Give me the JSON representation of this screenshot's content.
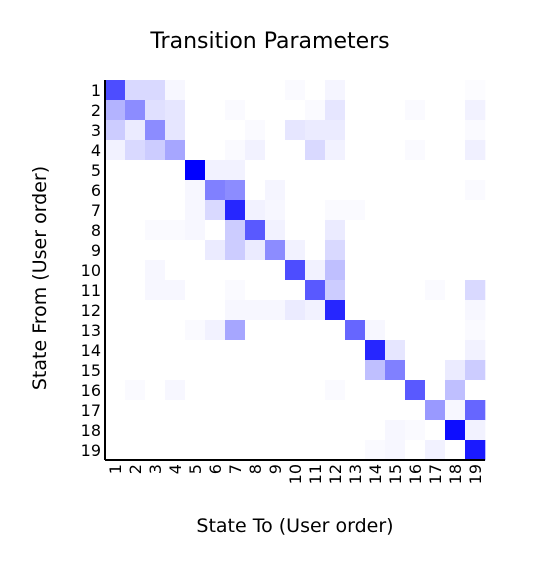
{
  "chart_data": {
    "type": "heatmap",
    "title": "Transition Parameters",
    "x_label": "State To (User order)",
    "y_label": "State From (User order)",
    "x_categories": [
      "1",
      "2",
      "3",
      "4",
      "5",
      "6",
      "7",
      "8",
      "9",
      "10",
      "11",
      "12",
      "13",
      "14",
      "15",
      "16",
      "17",
      "18",
      "19"
    ],
    "y_categories": [
      "1",
      "2",
      "3",
      "4",
      "5",
      "6",
      "7",
      "8",
      "9",
      "10",
      "11",
      "12",
      "13",
      "14",
      "15",
      "16",
      "17",
      "18",
      "19"
    ],
    "color": "#0000ff",
    "values": [
      [
        0.7,
        0.15,
        0.15,
        0.03,
        0,
        0,
        0,
        0,
        0,
        0.02,
        0,
        0.04,
        0,
        0,
        0,
        0,
        0,
        0,
        0.01
      ],
      [
        0.3,
        0.45,
        0.12,
        0.1,
        0,
        0,
        0.02,
        0,
        0,
        0,
        0.02,
        0.1,
        0,
        0,
        0,
        0.02,
        0,
        0,
        0.05
      ],
      [
        0.2,
        0.08,
        0.45,
        0.1,
        0,
        0,
        0,
        0.02,
        0,
        0.1,
        0.08,
        0.08,
        0,
        0,
        0,
        0,
        0,
        0,
        0.02
      ],
      [
        0.05,
        0.15,
        0.2,
        0.35,
        0,
        0,
        0.02,
        0.05,
        0,
        0,
        0.15,
        0.05,
        0,
        0,
        0,
        0.02,
        0,
        0,
        0.06
      ],
      [
        0,
        0,
        0,
        0,
        1.0,
        0.05,
        0.05,
        0,
        0,
        0,
        0,
        0,
        0,
        0,
        0,
        0,
        0,
        0,
        0
      ],
      [
        0,
        0,
        0,
        0,
        0.03,
        0.5,
        0.45,
        0,
        0.04,
        0,
        0,
        0,
        0,
        0,
        0,
        0,
        0,
        0,
        0.02
      ],
      [
        0,
        0,
        0,
        0,
        0.03,
        0.15,
        0.85,
        0.05,
        0.03,
        0,
        0,
        0.02,
        0.02,
        0,
        0,
        0,
        0,
        0,
        0
      ],
      [
        0,
        0,
        0.02,
        0.02,
        0.03,
        0,
        0.2,
        0.65,
        0.05,
        0,
        0,
        0.08,
        0,
        0,
        0,
        0,
        0,
        0,
        0
      ],
      [
        0,
        0,
        0,
        0,
        0,
        0.08,
        0.2,
        0.08,
        0.45,
        0.05,
        0,
        0.15,
        0,
        0,
        0,
        0,
        0,
        0,
        0
      ],
      [
        0,
        0,
        0.03,
        0,
        0,
        0,
        0,
        0,
        0,
        0.7,
        0.05,
        0.25,
        0,
        0,
        0,
        0,
        0,
        0,
        0
      ],
      [
        0,
        0,
        0.03,
        0.03,
        0,
        0,
        0.02,
        0,
        0,
        0,
        0.65,
        0.2,
        0,
        0,
        0,
        0,
        0.02,
        0,
        0.15
      ],
      [
        0,
        0,
        0,
        0,
        0,
        0,
        0.03,
        0.03,
        0.03,
        0.08,
        0.05,
        0.85,
        0,
        0,
        0,
        0,
        0,
        0,
        0.03
      ],
      [
        0,
        0,
        0,
        0,
        0.02,
        0.05,
        0.35,
        0,
        0,
        0,
        0,
        0,
        0.6,
        0.03,
        0,
        0,
        0,
        0,
        0.02
      ],
      [
        0,
        0,
        0,
        0,
        0,
        0,
        0,
        0,
        0,
        0,
        0,
        0,
        0,
        0.85,
        0.1,
        0,
        0,
        0,
        0.05
      ],
      [
        0,
        0,
        0,
        0,
        0,
        0,
        0,
        0,
        0,
        0,
        0,
        0,
        0,
        0.25,
        0.5,
        0,
        0,
        0.08,
        0.2
      ],
      [
        0,
        0.02,
        0,
        0.03,
        0,
        0,
        0,
        0,
        0,
        0,
        0,
        0.02,
        0,
        0,
        0,
        0.65,
        0,
        0.25,
        0
      ],
      [
        0,
        0,
        0,
        0,
        0,
        0,
        0,
        0,
        0,
        0,
        0,
        0,
        0,
        0,
        0,
        0,
        0.4,
        0.03,
        0.6
      ],
      [
        0,
        0,
        0,
        0,
        0,
        0,
        0,
        0,
        0,
        0,
        0,
        0,
        0,
        0,
        0.03,
        0.02,
        0,
        0.95,
        0.05
      ],
      [
        0,
        0,
        0,
        0,
        0,
        0,
        0,
        0,
        0,
        0,
        0,
        0,
        0,
        0.02,
        0.03,
        0,
        0.05,
        0,
        0.9
      ]
    ]
  }
}
